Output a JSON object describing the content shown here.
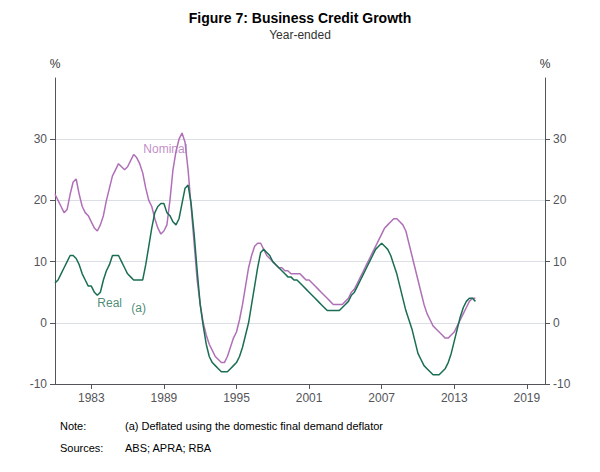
{
  "chart_data": {
    "type": "line",
    "title": "Figure 7: Business Credit Growth",
    "subtitle": "Year-ended",
    "ylabel": "%",
    "y2label": "%",
    "x": [
      1980,
      1980.25,
      1980.5,
      1980.75,
      1981,
      1981.25,
      1981.5,
      1981.75,
      1982,
      1982.25,
      1982.5,
      1982.75,
      1983,
      1983.25,
      1983.5,
      1983.75,
      1984,
      1984.25,
      1984.5,
      1984.75,
      1985,
      1985.25,
      1985.5,
      1985.75,
      1986,
      1986.25,
      1986.5,
      1986.75,
      1987,
      1987.25,
      1987.5,
      1987.75,
      1988,
      1988.25,
      1988.5,
      1988.75,
      1989,
      1989.25,
      1989.5,
      1989.75,
      1990,
      1990.25,
      1990.5,
      1990.75,
      1991,
      1991.25,
      1991.5,
      1991.75,
      1992,
      1992.25,
      1992.5,
      1992.75,
      1993,
      1993.25,
      1993.5,
      1993.75,
      1994,
      1994.25,
      1994.5,
      1994.75,
      1995,
      1995.25,
      1995.5,
      1995.75,
      1996,
      1996.25,
      1996.5,
      1996.75,
      1997,
      1997.25,
      1997.5,
      1997.75,
      1998,
      1998.25,
      1998.5,
      1998.75,
      1999,
      1999.25,
      1999.5,
      1999.75,
      2000,
      2000.25,
      2000.5,
      2000.75,
      2001,
      2001.25,
      2001.5,
      2001.75,
      2002,
      2002.25,
      2002.5,
      2002.75,
      2003,
      2003.25,
      2003.5,
      2003.75,
      2004,
      2004.25,
      2004.5,
      2004.75,
      2005,
      2005.25,
      2005.5,
      2005.75,
      2006,
      2006.25,
      2006.5,
      2006.75,
      2007,
      2007.25,
      2007.5,
      2007.75,
      2008,
      2008.25,
      2008.5,
      2008.75,
      2009,
      2009.25,
      2009.5,
      2009.75,
      2010,
      2010.25,
      2010.5,
      2010.75,
      2011,
      2011.25,
      2011.5,
      2011.75,
      2012,
      2012.25,
      2012.5,
      2012.75,
      2013,
      2013.25,
      2013.5,
      2013.75,
      2014,
      2014.25,
      2014.5,
      2014.75
    ],
    "series": [
      {
        "name": "Nominal",
        "color": "#b070b8",
        "values": [
          21.0,
          20.0,
          19.0,
          18.0,
          18.5,
          21.0,
          23.0,
          23.5,
          21.0,
          19.0,
          18.0,
          17.5,
          16.5,
          15.5,
          15.0,
          16.0,
          17.5,
          20.0,
          22.0,
          24.0,
          25.0,
          26.0,
          25.5,
          25.0,
          25.5,
          26.5,
          27.5,
          27.0,
          26.0,
          24.5,
          22.0,
          20.0,
          19.0,
          17.0,
          15.5,
          14.5,
          15.0,
          16.0,
          20.0,
          25.0,
          28.0,
          30.0,
          31.0,
          29.5,
          25.0,
          19.0,
          13.0,
          7.0,
          3.0,
          0.0,
          -2.0,
          -3.5,
          -4.5,
          -5.5,
          -6.0,
          -6.5,
          -6.5,
          -5.5,
          -4.0,
          -2.5,
          -1.5,
          0.5,
          3.0,
          6.0,
          9.0,
          11.0,
          12.5,
          13.0,
          13.0,
          12.0,
          11.0,
          10.5,
          10.0,
          9.5,
          9.0,
          9.0,
          8.5,
          8.5,
          8.0,
          8.0,
          8.0,
          8.0,
          7.5,
          7.0,
          7.0,
          6.5,
          6.0,
          5.5,
          5.0,
          4.5,
          4.0,
          3.5,
          3.0,
          3.0,
          3.0,
          3.0,
          3.5,
          4.0,
          5.0,
          5.5,
          6.5,
          7.5,
          8.5,
          9.5,
          10.5,
          11.5,
          12.5,
          13.5,
          14.5,
          15.5,
          16.0,
          16.5,
          17.0,
          17.0,
          16.5,
          16.0,
          15.0,
          13.0,
          11.0,
          9.0,
          7.0,
          5.0,
          3.0,
          1.5,
          0.5,
          -0.5,
          -1.0,
          -1.5,
          -2.0,
          -2.5,
          -2.5,
          -2.0,
          -1.5,
          -0.5,
          0.5,
          1.5,
          2.5,
          3.5,
          4.0,
          4.0
        ]
      },
      {
        "name": "Real",
        "color": "#1a6e52",
        "values": [
          6.5,
          7.0,
          8.0,
          9.0,
          10.0,
          11.0,
          11.0,
          10.5,
          9.5,
          8.0,
          7.0,
          6.0,
          6.0,
          5.0,
          4.5,
          5.0,
          7.0,
          8.5,
          9.5,
          11.0,
          11.0,
          11.0,
          10.0,
          9.0,
          8.0,
          7.5,
          7.0,
          7.0,
          7.0,
          7.0,
          9.5,
          12.5,
          15.5,
          18.0,
          19.0,
          19.5,
          19.5,
          18.0,
          17.5,
          16.5,
          16.0,
          17.0,
          19.5,
          22.0,
          22.5,
          19.5,
          14.5,
          8.5,
          3.0,
          -0.5,
          -3.5,
          -5.5,
          -6.5,
          -7.0,
          -7.5,
          -8.0,
          -8.0,
          -8.0,
          -7.5,
          -7.0,
          -6.5,
          -5.5,
          -4.0,
          -2.0,
          0.0,
          3.0,
          6.0,
          9.0,
          11.5,
          12.0,
          11.5,
          11.0,
          10.0,
          9.5,
          9.0,
          8.5,
          8.0,
          7.5,
          7.5,
          7.0,
          7.0,
          6.5,
          6.0,
          5.5,
          5.0,
          4.5,
          4.0,
          3.5,
          3.0,
          2.5,
          2.0,
          2.0,
          2.0,
          2.0,
          2.0,
          2.5,
          3.0,
          3.5,
          4.5,
          5.0,
          6.0,
          7.0,
          8.0,
          9.0,
          10.0,
          11.0,
          12.0,
          12.5,
          13.0,
          12.5,
          12.0,
          11.0,
          9.5,
          8.0,
          6.0,
          4.0,
          2.0,
          0.5,
          -1.0,
          -3.0,
          -5.0,
          -6.0,
          -7.0,
          -7.5,
          -8.0,
          -8.5,
          -8.5,
          -8.5,
          -8.0,
          -7.5,
          -6.5,
          -5.0,
          -3.0,
          -1.0,
          1.0,
          2.5,
          3.5,
          4.0,
          4.0,
          3.5
        ]
      }
    ],
    "xlim": [
      1980,
      2020.5
    ],
    "xticks": [
      1983,
      1989,
      1995,
      2001,
      2007,
      2013,
      2019
    ],
    "ylim": [
      -10,
      40
    ],
    "yticks": [
      -10,
      0,
      10,
      20,
      30
    ],
    "y2lim": [
      -10,
      40
    ],
    "y2ticks": [
      -10,
      0,
      10,
      20,
      30
    ],
    "grid": true,
    "annotations": [
      {
        "text": "Nominal",
        "x": 1987.3,
        "y": 27.5,
        "color": "#b070b8"
      },
      {
        "text": "Real",
        "x": 1983.5,
        "y": 2.2,
        "color": "#1a6e52"
      },
      {
        "text": "(a)",
        "x": 1986.3,
        "y": 1.5,
        "color": "#1a6e52"
      }
    ],
    "footnotes": [
      [
        "Note:",
        "(a) Deflated using the domestic final demand deflator"
      ],
      [
        "Sources:",
        "ABS; APRA; RBA"
      ]
    ]
  }
}
